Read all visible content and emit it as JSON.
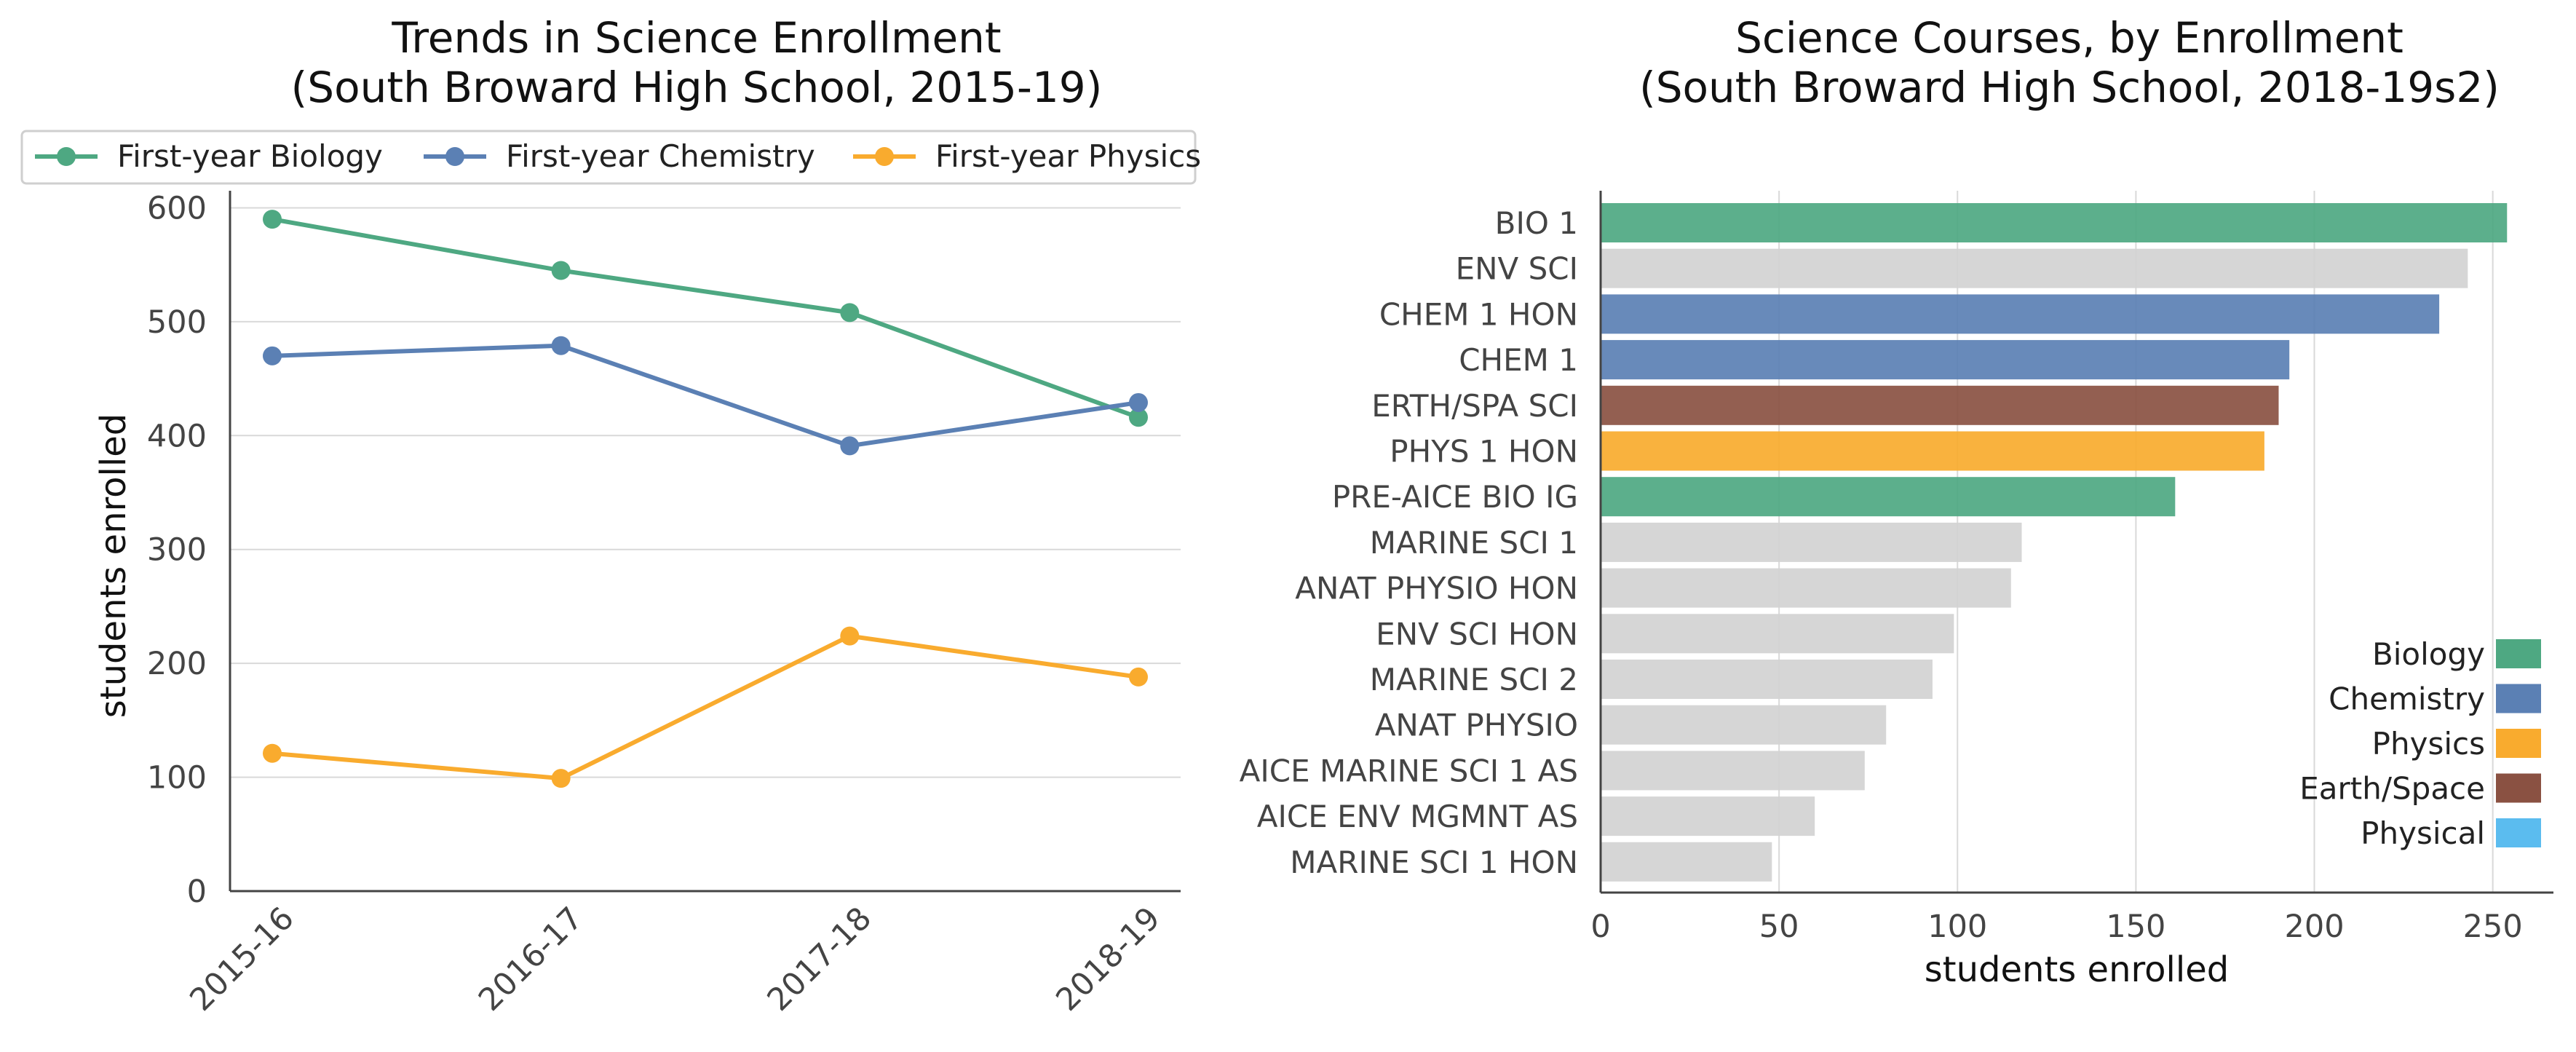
{
  "chart_data": [
    {
      "type": "line",
      "title": "Trends in Science Enrollment",
      "subtitle": "(South Broward High School, 2015-19)",
      "xlabel": "",
      "ylabel": "students enrolled",
      "categories": [
        "2015-16",
        "2016-17",
        "2017-18",
        "2018-19"
      ],
      "ylim": [
        0,
        615
      ],
      "yticks": [
        "0",
        "100",
        "200",
        "300",
        "400",
        "500",
        "600"
      ],
      "grid": "horizontal",
      "legend_position": "top",
      "series": [
        {
          "name": "First-year Biology",
          "color": "#4ea882",
          "values": [
            590,
            545,
            508,
            416
          ]
        },
        {
          "name": "First-year Chemistry",
          "color": "#5b80b4",
          "values": [
            470,
            479,
            391,
            429
          ]
        },
        {
          "name": "First-year Physics",
          "color": "#f9ab2e",
          "values": [
            121,
            99,
            224,
            188
          ]
        }
      ]
    },
    {
      "type": "bar",
      "orientation": "horizontal",
      "title": "Science Courses, by Enrollment",
      "subtitle": "(South Broward High School, 2018-19s2)",
      "xlabel": "students enrolled",
      "ylabel": "",
      "xlim": [
        0,
        267
      ],
      "xticks": [
        "0",
        "50",
        "100",
        "150",
        "200",
        "250"
      ],
      "grid": "vertical",
      "legend_position": "bottom-right",
      "categories": [
        "BIO 1",
        "ENV SCI",
        "CHEM 1 HON",
        "CHEM 1",
        "ERTH/SPA SCI",
        "PHYS 1 HON",
        "PRE-AICE BIO IG",
        "MARINE SCI 1",
        "ANAT PHYSIO HON",
        "ENV SCI HON",
        "MARINE SCI 2",
        "ANAT PHYSIO",
        "AICE MARINE SCI 1 AS",
        "AICE ENV MGMNT AS",
        "MARINE SCI 1 HON"
      ],
      "values": [
        254,
        243,
        235,
        193,
        190,
        186,
        161,
        118,
        115,
        99,
        93,
        80,
        74,
        60,
        48
      ],
      "groups": [
        "Biology",
        "Other",
        "Chemistry",
        "Chemistry",
        "Earth/Space",
        "Physics",
        "Biology",
        "Other",
        "Other",
        "Other",
        "Other",
        "Other",
        "Other",
        "Other",
        "Other"
      ],
      "group_colors": {
        "Biology": "#4ea882",
        "Chemistry": "#5b80b4",
        "Physics": "#f9ab2e",
        "Earth/Space": "#8a5142",
        "Physical": "#5bbcef",
        "Other": "#d3d3d3"
      },
      "legend": [
        "Biology",
        "Chemistry",
        "Physics",
        "Earth/Space",
        "Physical"
      ]
    }
  ]
}
